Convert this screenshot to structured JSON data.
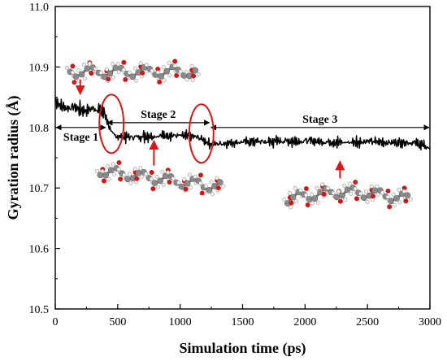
{
  "chart_data": {
    "type": "line",
    "xlabel": "Simulation time (ps)",
    "ylabel": "Gyration radius (Å)",
    "xlim": [
      0,
      3000
    ],
    "ylim": [
      10.5,
      11.0
    ],
    "x_ticks": [
      "0",
      "500",
      "1000",
      "1500",
      "2000",
      "2500",
      "3000"
    ],
    "y_ticks": [
      "10.5",
      "10.6",
      "10.7",
      "10.8",
      "10.9",
      "11.0"
    ],
    "grid": false,
    "series": [
      {
        "x": [
          0,
          50,
          100,
          150,
          200,
          250,
          300,
          350,
          390,
          410,
          450,
          500,
          600,
          700,
          800,
          900,
          1000,
          1100,
          1150,
          1200,
          1250,
          1300,
          1400,
          1500,
          1600,
          1700,
          1800,
          1900,
          2000,
          2100,
          2200,
          2300,
          2400,
          2500,
          2600,
          2700,
          2800,
          2900,
          3000
        ],
        "values": [
          10.845,
          10.835,
          10.832,
          10.834,
          10.83,
          10.828,
          10.832,
          10.83,
          10.825,
          10.815,
          10.79,
          10.785,
          10.784,
          10.785,
          10.786,
          10.787,
          10.786,
          10.785,
          10.783,
          10.778,
          10.772,
          10.773,
          10.775,
          10.776,
          10.777,
          10.776,
          10.778,
          10.777,
          10.778,
          10.777,
          10.776,
          10.775,
          10.776,
          10.777,
          10.776,
          10.775,
          10.776,
          10.774,
          10.765
        ]
      }
    ],
    "annotations": [
      {
        "label": "Stage 1",
        "x_start": 0,
        "x_end": 410,
        "y": 10.8
      },
      {
        "label": "Stage 2",
        "x_start": 410,
        "x_end": 1240,
        "y": 10.808
      },
      {
        "label": "Stage 3",
        "x_start": 1240,
        "x_end": 3000,
        "y": 10.8
      }
    ],
    "highlights": [
      {
        "x": 450,
        "y": 10.806
      },
      {
        "x": 1170,
        "y": 10.79
      }
    ],
    "arrows": [
      {
        "x": 200,
        "from_y": 10.879,
        "to_y": 10.855
      },
      {
        "x": 790,
        "from_y": 10.737,
        "to_y": 10.778
      },
      {
        "x": 2280,
        "from_y": 10.716,
        "to_y": 10.744
      }
    ],
    "molecules": [
      {
        "x_start": 120,
        "x_end": 1120,
        "y": 10.892
      },
      {
        "x_start": 360,
        "x_end": 1320,
        "y": 10.715
      },
      {
        "x_start": 1860,
        "x_end": 2820,
        "y": 10.682
      }
    ]
  }
}
